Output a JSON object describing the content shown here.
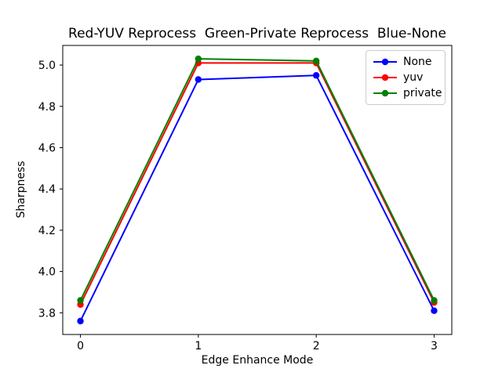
{
  "chart_data": {
    "type": "line",
    "title": "Red-YUV Reprocess  Green-Private Reprocess  Blue-None",
    "xlabel": "Edge Enhance Mode",
    "ylabel": "Sharpness",
    "x": [
      0,
      1,
      2,
      3
    ],
    "series": [
      {
        "name": "None",
        "color": "#0000ff",
        "values": [
          3.76,
          4.93,
          4.95,
          3.81
        ]
      },
      {
        "name": "yuv",
        "color": "#ff0000",
        "values": [
          3.84,
          5.01,
          5.01,
          3.85
        ]
      },
      {
        "name": "private",
        "color": "#008000",
        "values": [
          3.86,
          5.03,
          5.02,
          3.86
        ]
      }
    ],
    "xtick_values": [
      0,
      1,
      2,
      3
    ],
    "xtick_labels": [
      "0",
      "1",
      "2",
      "3"
    ],
    "ytick_values": [
      3.8,
      4.0,
      4.2,
      4.4,
      4.6,
      4.8,
      5.0
    ],
    "ytick_labels": [
      "3.8",
      "4.0",
      "4.2",
      "4.4",
      "4.6",
      "4.8",
      "5.0"
    ],
    "xlim": [
      -0.15,
      3.15
    ],
    "ylim": [
      3.695,
      5.095
    ],
    "grid": false,
    "marker": "circle",
    "legend_position": "upper right",
    "legend_labels": [
      "None",
      "yuv",
      "private"
    ]
  }
}
